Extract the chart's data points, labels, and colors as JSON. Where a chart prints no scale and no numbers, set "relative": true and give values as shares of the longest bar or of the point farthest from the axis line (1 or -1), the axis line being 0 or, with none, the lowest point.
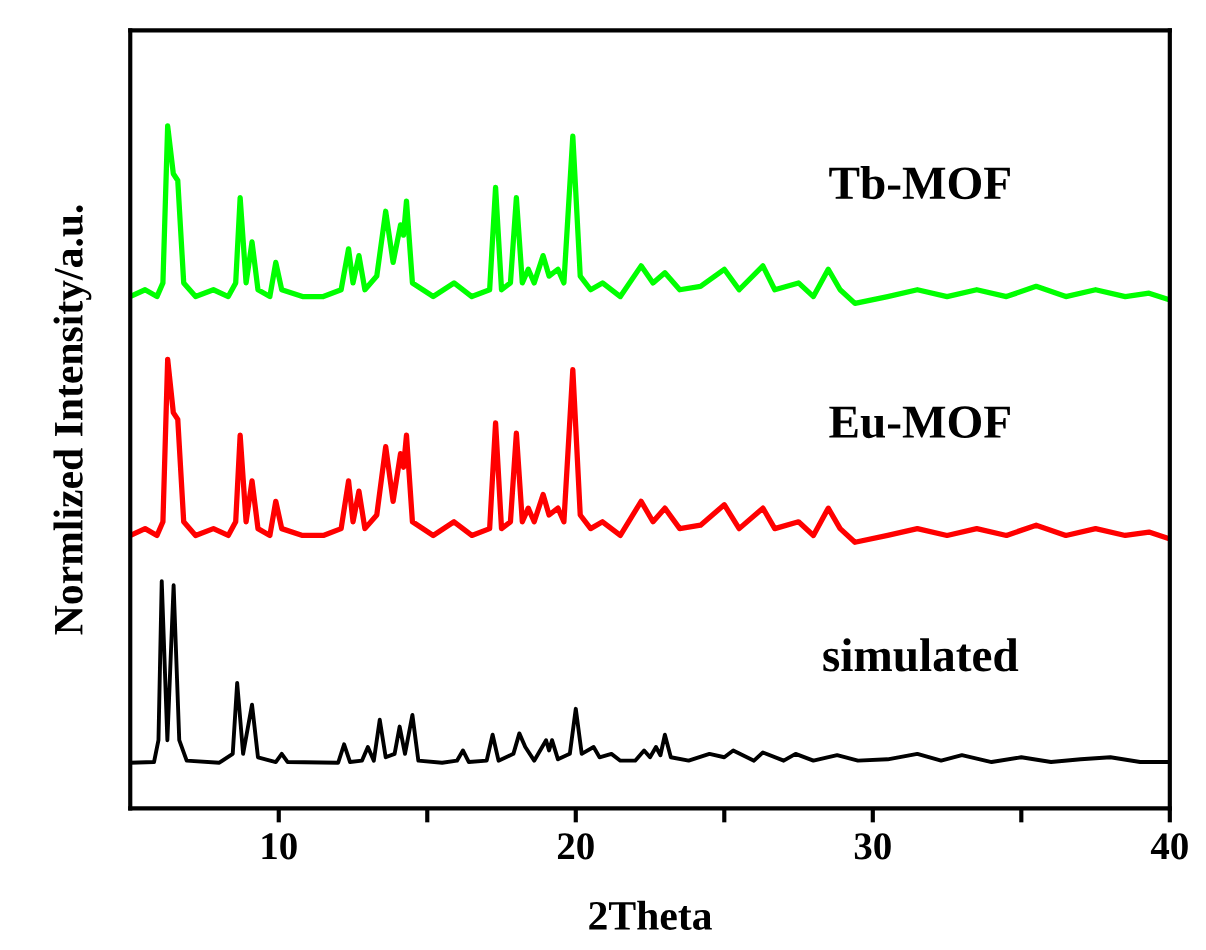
{
  "chart_data": {
    "type": "line",
    "xlabel": "2Theta",
    "ylabel": "Normlized Intensity/a.u.",
    "relative": true,
    "xlim": [
      5,
      40
    ],
    "xticks": [
      10,
      {
        "value": 15,
        "label": null
      },
      20,
      {
        "value": 25,
        "label": null
      },
      30,
      {
        "value": 35,
        "label": null
      },
      40
    ],
    "grid": false,
    "marker": "none",
    "line_style": "solid",
    "tick_labels": "x",
    "series": [
      {
        "name": "Tb-MOF",
        "color": "#00ff00",
        "x": [
          5.0,
          5.5,
          5.9,
          6.1,
          6.26,
          6.45,
          6.6,
          6.8,
          7.2,
          7.8,
          8.3,
          8.55,
          8.7,
          8.9,
          9.1,
          9.3,
          9.7,
          9.9,
          10.1,
          10.8,
          11.5,
          12.1,
          12.35,
          12.5,
          12.7,
          12.9,
          13.3,
          13.6,
          13.85,
          14.1,
          14.2,
          14.3,
          14.5,
          15.2,
          15.9,
          16.5,
          17.1,
          17.3,
          17.5,
          17.8,
          18.0,
          18.2,
          18.4,
          18.6,
          18.9,
          19.1,
          19.4,
          19.6,
          19.9,
          20.15,
          20.5,
          20.9,
          21.5,
          22.2,
          22.6,
          23.0,
          23.5,
          24.2,
          25.0,
          25.5,
          26.3,
          26.7,
          27.5,
          28.0,
          28.5,
          28.9,
          29.4,
          30.5,
          31.5,
          32.5,
          33.5,
          34.5,
          35.5,
          36.5,
          37.5,
          38.5,
          39.3,
          40
        ],
        "values": [
          0.75,
          0.76,
          0.75,
          0.77,
          1.0,
          0.93,
          0.92,
          0.77,
          0.75,
          0.76,
          0.75,
          0.77,
          0.895,
          0.77,
          0.83,
          0.76,
          0.75,
          0.8,
          0.76,
          0.75,
          0.75,
          0.76,
          0.82,
          0.77,
          0.81,
          0.76,
          0.78,
          0.875,
          0.8,
          0.855,
          0.84,
          0.89,
          0.77,
          0.75,
          0.77,
          0.75,
          0.76,
          0.91,
          0.76,
          0.77,
          0.895,
          0.77,
          0.79,
          0.77,
          0.81,
          0.78,
          0.79,
          0.77,
          0.985,
          0.78,
          0.76,
          0.77,
          0.75,
          0.795,
          0.77,
          0.785,
          0.76,
          0.765,
          0.79,
          0.76,
          0.795,
          0.76,
          0.77,
          0.75,
          0.79,
          0.76,
          0.74,
          0.75,
          0.76,
          0.75,
          0.76,
          0.75,
          0.765,
          0.75,
          0.76,
          0.75,
          0.755,
          0.745
        ]
      },
      {
        "name": "Eu-MOF",
        "color": "#ff0000",
        "x": [
          5.0,
          5.5,
          5.9,
          6.1,
          6.26,
          6.45,
          6.6,
          6.8,
          7.2,
          7.8,
          8.3,
          8.55,
          8.7,
          8.9,
          9.1,
          9.3,
          9.7,
          9.9,
          10.1,
          10.8,
          11.5,
          12.1,
          12.35,
          12.5,
          12.7,
          12.9,
          13.3,
          13.6,
          13.85,
          14.1,
          14.2,
          14.3,
          14.5,
          15.2,
          15.9,
          16.5,
          17.1,
          17.3,
          17.5,
          17.8,
          18.0,
          18.2,
          18.4,
          18.6,
          18.9,
          19.1,
          19.4,
          19.6,
          19.9,
          20.15,
          20.5,
          20.9,
          21.5,
          22.2,
          22.6,
          23.0,
          23.5,
          24.2,
          25.0,
          25.5,
          26.3,
          26.7,
          27.5,
          28.0,
          28.5,
          28.9,
          29.4,
          30.5,
          31.5,
          32.5,
          33.5,
          34.5,
          35.5,
          36.5,
          37.5,
          38.5,
          39.3,
          40
        ],
        "values": [
          0.4,
          0.41,
          0.4,
          0.42,
          0.658,
          0.58,
          0.57,
          0.42,
          0.4,
          0.41,
          0.4,
          0.42,
          0.547,
          0.42,
          0.48,
          0.41,
          0.4,
          0.45,
          0.41,
          0.4,
          0.4,
          0.41,
          0.48,
          0.42,
          0.465,
          0.41,
          0.43,
          0.53,
          0.45,
          0.52,
          0.5,
          0.547,
          0.42,
          0.4,
          0.42,
          0.4,
          0.41,
          0.565,
          0.41,
          0.42,
          0.55,
          0.42,
          0.44,
          0.42,
          0.46,
          0.43,
          0.44,
          0.42,
          0.643,
          0.43,
          0.41,
          0.42,
          0.4,
          0.45,
          0.42,
          0.44,
          0.41,
          0.415,
          0.445,
          0.41,
          0.44,
          0.41,
          0.42,
          0.4,
          0.44,
          0.41,
          0.39,
          0.4,
          0.41,
          0.4,
          0.41,
          0.4,
          0.415,
          0.4,
          0.41,
          0.4,
          0.405,
          0.395
        ]
      },
      {
        "name": "simulated",
        "color": "#000000",
        "x": [
          5.0,
          5.8,
          5.95,
          6.06,
          6.25,
          6.46,
          6.65,
          6.9,
          8.0,
          8.45,
          8.6,
          8.8,
          9.1,
          9.3,
          9.9,
          10.1,
          10.3,
          12.0,
          12.2,
          12.4,
          12.8,
          13.0,
          13.2,
          13.4,
          13.6,
          13.9,
          14.07,
          14.25,
          14.5,
          14.7,
          15.5,
          16.0,
          16.2,
          16.4,
          17.0,
          17.2,
          17.4,
          17.9,
          18.1,
          18.3,
          18.6,
          19.0,
          19.1,
          19.2,
          19.4,
          19.8,
          20.0,
          20.2,
          20.6,
          20.8,
          21.2,
          21.5,
          22.0,
          22.3,
          22.5,
          22.7,
          22.85,
          23.0,
          23.2,
          23.8,
          24.5,
          25.0,
          25.3,
          26.0,
          26.3,
          27.0,
          27.4,
          28.0,
          28.8,
          29.5,
          30.5,
          31.5,
          32.3,
          33.0,
          34.0,
          35.0,
          36.0,
          37.0,
          38.0,
          39.0,
          40
        ],
        "values": [
          0.067,
          0.068,
          0.1,
          0.333,
          0.1,
          0.327,
          0.1,
          0.07,
          0.067,
          0.08,
          0.184,
          0.08,
          0.152,
          0.075,
          0.068,
          0.08,
          0.068,
          0.067,
          0.094,
          0.068,
          0.07,
          0.09,
          0.07,
          0.13,
          0.075,
          0.08,
          0.12,
          0.08,
          0.137,
          0.07,
          0.067,
          0.07,
          0.085,
          0.068,
          0.07,
          0.108,
          0.07,
          0.08,
          0.11,
          0.09,
          0.07,
          0.1,
          0.085,
          0.1,
          0.072,
          0.08,
          0.146,
          0.08,
          0.09,
          0.075,
          0.08,
          0.07,
          0.07,
          0.085,
          0.075,
          0.09,
          0.078,
          0.108,
          0.075,
          0.07,
          0.08,
          0.075,
          0.085,
          0.07,
          0.082,
          0.07,
          0.08,
          0.07,
          0.078,
          0.07,
          0.072,
          0.08,
          0.07,
          0.078,
          0.068,
          0.075,
          0.068,
          0.072,
          0.075,
          0.068,
          0.068
        ]
      }
    ]
  }
}
